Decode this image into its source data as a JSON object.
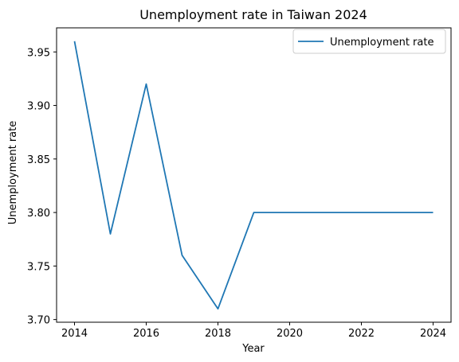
{
  "chart_data": {
    "type": "line",
    "title": "Unemployment rate in Taiwan 2024",
    "xlabel": "Year",
    "ylabel": "Unemployment rate",
    "x": [
      2014,
      2015,
      2016,
      2017,
      2018,
      2019,
      2020,
      2021,
      2022,
      2023,
      2024
    ],
    "series": [
      {
        "name": "Unemployment rate",
        "values": [
          3.96,
          3.78,
          3.92,
          3.76,
          3.71,
          3.8,
          3.8,
          3.8,
          3.8,
          3.8,
          3.8
        ]
      }
    ],
    "xlim": [
      2013.5,
      2024.5
    ],
    "ylim": [
      3.6975,
      3.9725
    ],
    "x_ticks": [
      2014,
      2016,
      2018,
      2020,
      2022,
      2024
    ],
    "x_tick_labels": [
      "2014",
      "2016",
      "2018",
      "2020",
      "2022",
      "2024"
    ],
    "y_ticks": [
      3.7,
      3.75,
      3.8,
      3.85,
      3.9,
      3.95
    ],
    "y_tick_labels": [
      "3.70",
      "3.75",
      "3.80",
      "3.85",
      "3.90",
      "3.95"
    ],
    "grid": false,
    "legend": "top-right",
    "line_color": "#1f77b4"
  }
}
